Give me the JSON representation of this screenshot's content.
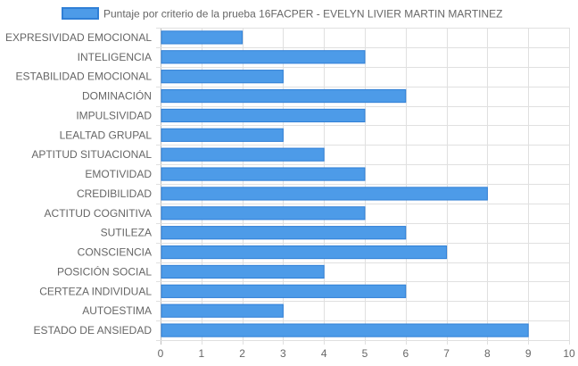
{
  "chart_data": {
    "type": "bar",
    "orientation": "horizontal",
    "categories": [
      "EXPRESIVIDAD EMOCIONAL",
      "INTELIGENCIA",
      "ESTABILIDAD EMOCIONAL",
      "DOMINACIÓN",
      "IMPULSIVIDAD",
      "LEALTAD GRUPAL",
      "APTITUD SITUACIONAL",
      "EMOTIVIDAD",
      "CREDIBILIDAD",
      "ACTITUD COGNITIVA",
      "SUTILEZA",
      "CONSCIENCIA",
      "POSICIÓN SOCIAL",
      "CERTEZA INDIVIDUAL",
      "AUTOESTIMA",
      "ESTADO DE ANSIEDAD"
    ],
    "series": [
      {
        "name": "Puntaje por criterio de la prueba 16FACPER - EVELYN LIVIER MARTIN MARTINEZ",
        "values": [
          2,
          5,
          3,
          6,
          5,
          3,
          4,
          5,
          8,
          5,
          6,
          7,
          4,
          6,
          3,
          9
        ]
      }
    ],
    "xlim": [
      0,
      10
    ],
    "ticks": [
      "0",
      "1",
      "2",
      "3",
      "4",
      "5",
      "6",
      "7",
      "8",
      "9",
      "10"
    ],
    "grid": true,
    "legend": "top",
    "colors": {
      "bar_fill": "#4d9be8",
      "bar_stroke": "#2f7fd6",
      "grid": "#e0e0e0",
      "text": "#666666"
    }
  }
}
